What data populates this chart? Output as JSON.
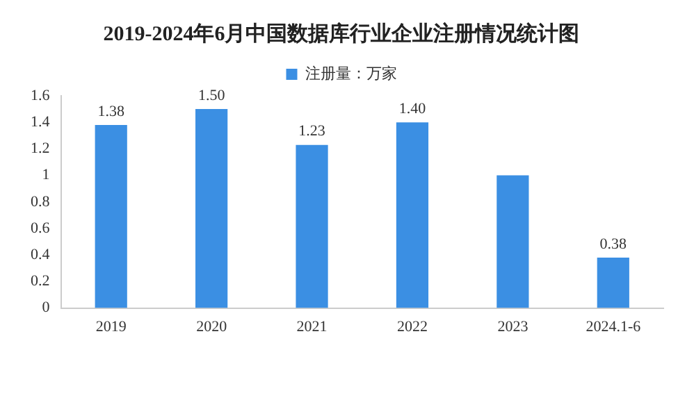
{
  "chart_data": {
    "type": "bar",
    "title": "2019-2024年6月中国数据库行业企业注册情况统计图",
    "categories": [
      "2019",
      "2020",
      "2021",
      "2022",
      "2023",
      "2024.1-6"
    ],
    "series": [
      {
        "name": "注册量：万家",
        "color": "#3b8fe3",
        "values": [
          1.38,
          1.5,
          1.23,
          1.4,
          1.0,
          0.38
        ],
        "value_labels": [
          "1.38",
          "1.50",
          "1.23",
          "1.40",
          null,
          "0.38"
        ]
      }
    ],
    "ylim": [
      0,
      1.6
    ],
    "yticks": [
      0,
      0.2,
      0.4,
      0.6,
      0.8,
      1,
      1.2,
      1.4,
      1.6
    ],
    "grid": false,
    "legend": "top"
  }
}
